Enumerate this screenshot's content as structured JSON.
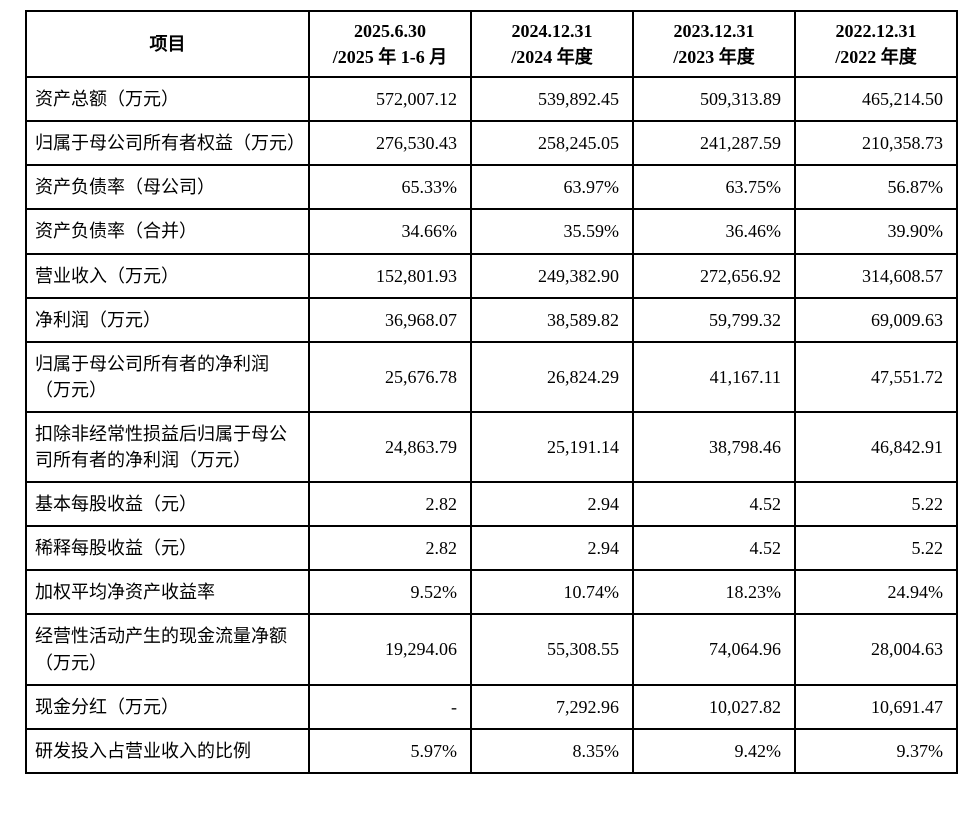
{
  "table": {
    "columns": [
      {
        "label": "项目"
      },
      {
        "label": "2025.6.30\n/2025 年 1-6 月"
      },
      {
        "label": "2024.12.31\n/2024 年度"
      },
      {
        "label": "2023.12.31\n/2023 年度"
      },
      {
        "label": "2022.12.31\n/2022 年度"
      }
    ],
    "rows": [
      {
        "label": "资产总额（万元）",
        "values": [
          "572,007.12",
          "539,892.45",
          "509,313.89",
          "465,214.50"
        ]
      },
      {
        "label": "归属于母公司所有者权益（万元）",
        "values": [
          "276,530.43",
          "258,245.05",
          "241,287.59",
          "210,358.73"
        ]
      },
      {
        "label": "资产负债率（母公司）",
        "values": [
          "65.33%",
          "63.97%",
          "63.75%",
          "56.87%"
        ]
      },
      {
        "label": "资产负债率（合并）",
        "values": [
          "34.66%",
          "35.59%",
          "36.46%",
          "39.90%"
        ]
      },
      {
        "label": "营业收入（万元）",
        "values": [
          "152,801.93",
          "249,382.90",
          "272,656.92",
          "314,608.57"
        ]
      },
      {
        "label": "净利润（万元）",
        "values": [
          "36,968.07",
          "38,589.82",
          "59,799.32",
          "69,009.63"
        ]
      },
      {
        "label": "归属于母公司所有者的净利润（万元）",
        "values": [
          "25,676.78",
          "26,824.29",
          "41,167.11",
          "47,551.72"
        ]
      },
      {
        "label": "扣除非经常性损益后归属于母公司所有者的净利润（万元）",
        "values": [
          "24,863.79",
          "25,191.14",
          "38,798.46",
          "46,842.91"
        ]
      },
      {
        "label": "基本每股收益（元）",
        "values": [
          "2.82",
          "2.94",
          "4.52",
          "5.22"
        ]
      },
      {
        "label": "稀释每股收益（元）",
        "values": [
          "2.82",
          "2.94",
          "4.52",
          "5.22"
        ]
      },
      {
        "label": "加权平均净资产收益率",
        "values": [
          "9.52%",
          "10.74%",
          "18.23%",
          "24.94%"
        ]
      },
      {
        "label": "经营性活动产生的现金流量净额（万元）",
        "values": [
          "19,294.06",
          "55,308.55",
          "74,064.96",
          "28,004.63"
        ]
      },
      {
        "label": "现金分红（万元）",
        "values": [
          "-",
          "7,292.96",
          "10,027.82",
          "10,691.47"
        ]
      },
      {
        "label": "研发投入占营业收入的比例",
        "values": [
          "5.97%",
          "8.35%",
          "9.42%",
          "9.37%"
        ]
      }
    ]
  }
}
